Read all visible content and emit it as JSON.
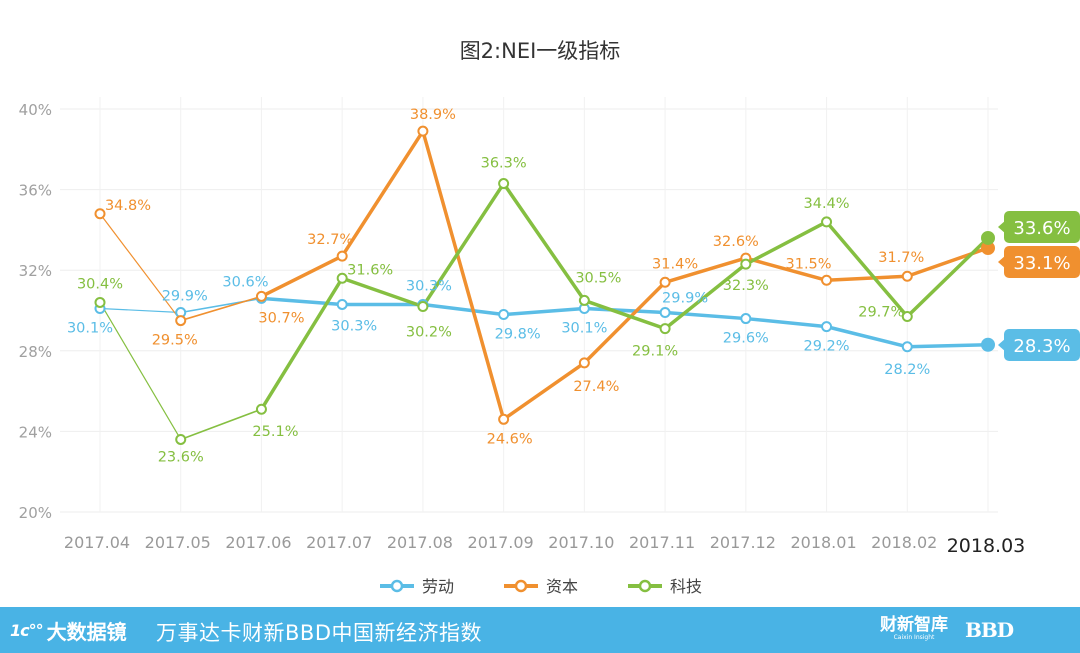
{
  "chart_data": {
    "type": "line",
    "title": "图2:NEI一级指标",
    "categories": [
      "2017.04",
      "2017.05",
      "2017.06",
      "2017.07",
      "2017.08",
      "2017.09",
      "2017.10",
      "2017.11",
      "2017.12",
      "2018.01",
      "2018.02",
      "2018.03"
    ],
    "y_ticks": [
      "20%",
      "24%",
      "28%",
      "32%",
      "36%",
      "40%"
    ],
    "ylim": [
      20,
      40
    ],
    "grid": true,
    "legend_position": "bottom",
    "series": [
      {
        "name": "劳动",
        "color": "#5bbde6",
        "values": [
          30.1,
          29.9,
          30.6,
          30.3,
          30.3,
          29.8,
          30.1,
          29.9,
          29.6,
          29.2,
          28.2,
          28.3
        ],
        "labels": [
          "30.1%",
          "29.9%",
          "30.6%",
          "30.3%",
          "30.3%",
          "29.8%",
          "30.1%",
          "29.9%",
          "29.6%",
          "29.2%",
          "28.2%",
          "28.3%"
        ],
        "end_label": "28.3%"
      },
      {
        "name": "资本",
        "color": "#f0902f",
        "values": [
          34.8,
          29.5,
          30.7,
          32.7,
          38.9,
          24.6,
          27.4,
          31.4,
          32.6,
          31.5,
          31.7,
          33.1
        ],
        "labels": [
          "34.8%",
          "29.5%",
          "30.7%",
          "32.7%",
          "38.9%",
          "24.6%",
          "27.4%",
          "31.4%",
          "32.6%",
          "31.5%",
          "31.7%",
          "33.1%"
        ],
        "end_label": "33.1%"
      },
      {
        "name": "科技",
        "color": "#85bf41",
        "values": [
          30.4,
          23.6,
          25.1,
          31.6,
          30.2,
          36.3,
          30.5,
          29.1,
          32.3,
          34.4,
          29.7,
          33.6
        ],
        "labels": [
          "30.4%",
          "23.6%",
          "25.1%",
          "31.6%",
          "30.2%",
          "36.3%",
          "30.5%",
          "29.1%",
          "32.3%",
          "34.4%",
          "29.7%",
          "33.6%"
        ],
        "end_label": "33.6%"
      }
    ]
  },
  "footer": {
    "brand_mark": "1c°°",
    "brand_name": "大数据镜",
    "index_title": "万事达卡财新BBD中国新经济指数",
    "partner_caixin": "财新智库",
    "partner_caixin_sub": "Caixin Insight",
    "partner_bbd": "BBD"
  }
}
